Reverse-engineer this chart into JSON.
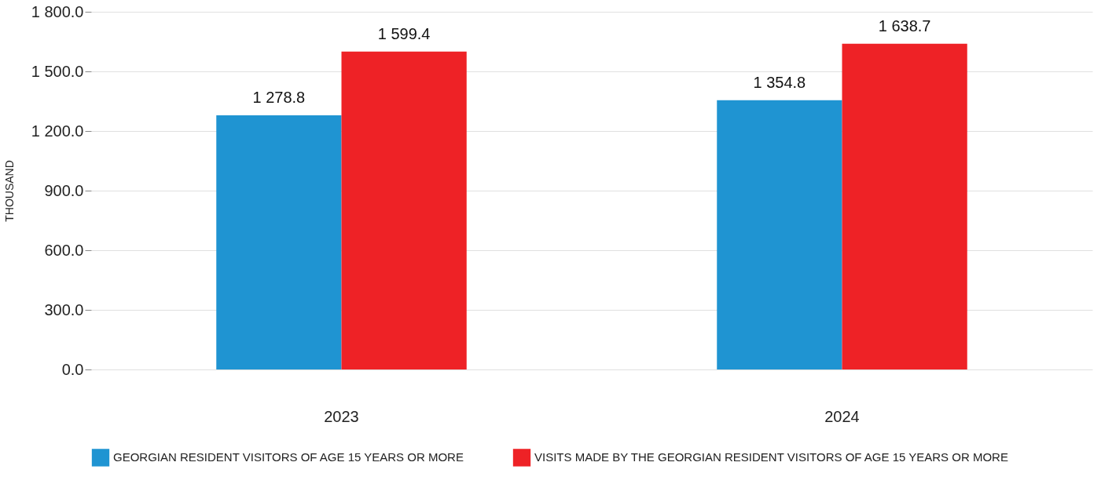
{
  "chart_data": {
    "type": "bar",
    "ylabel": "THOUSAND",
    "categories": [
      "2023",
      "2024"
    ],
    "series": [
      {
        "name": "GEORGIAN RESIDENT VISITORS OF AGE 15 YEARS OR MORE",
        "color": "#1f94d2",
        "values": [
          1278.8,
          1354.8
        ],
        "value_labels": [
          "1 278.8",
          "1 354.8"
        ]
      },
      {
        "name": "VISITS MADE BY THE GEORGIAN RESIDENT VISITORS OF AGE 15 YEARS OR MORE",
        "color": "#ee2226",
        "values": [
          1599.4,
          1638.7
        ],
        "value_labels": [
          "1 599.4",
          "1 638.7"
        ]
      }
    ],
    "ylim": [
      0,
      1800
    ],
    "yticks": [
      {
        "value": 0,
        "label": "0.0"
      },
      {
        "value": 300,
        "label": "300.0"
      },
      {
        "value": 600,
        "label": "600.0"
      },
      {
        "value": 900,
        "label": "900.0"
      },
      {
        "value": 1200,
        "label": "1 200.0"
      },
      {
        "value": 1500,
        "label": "1 500.0"
      },
      {
        "value": 1800,
        "label": "1 800.0"
      }
    ],
    "grid": "y",
    "legend": "bottom"
  }
}
